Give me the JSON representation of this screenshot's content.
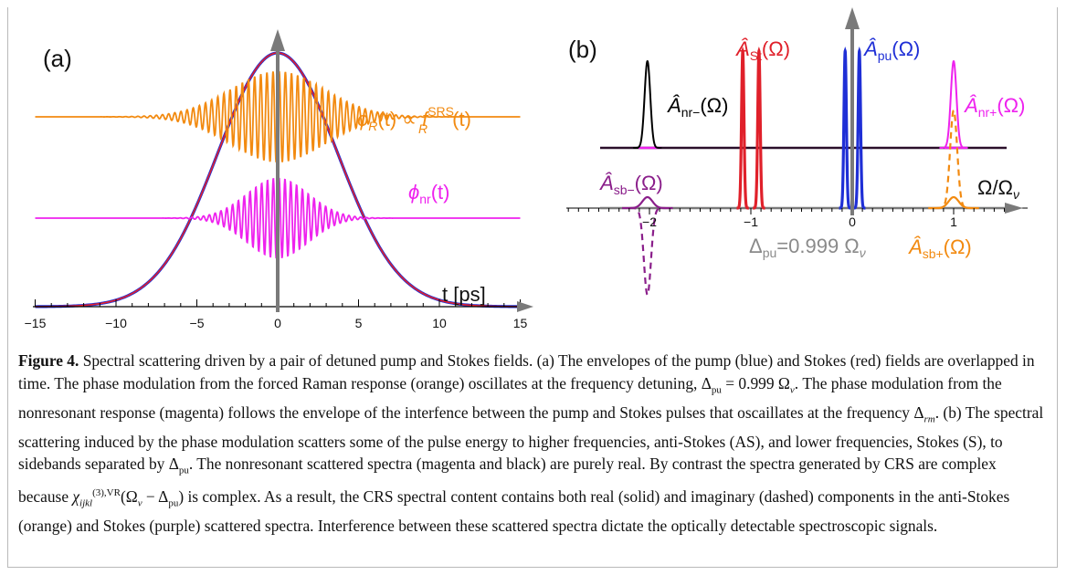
{
  "panel_a": {
    "label": "(a)",
    "phi_R_label": {
      "phi": "ϕ",
      "R": "R",
      "middle": "(t) ∝ ",
      "f": "f",
      "sup": "SRS",
      "sub": "R",
      "end": "(t)"
    },
    "phi_nr_label": {
      "phi": "ϕ",
      "sub": "nr",
      "end": "(t)"
    },
    "axis_label": "t [ps]",
    "ticks": [
      "−15",
      "−10",
      "−5",
      "0",
      "5",
      "10",
      "15"
    ],
    "colors": {
      "pump": "#1f2fd6",
      "stokes": "#e0202a",
      "raman": "#f28a10",
      "nonresonant": "#ee22ee",
      "axis": "#7a7a7a"
    }
  },
  "panel_b": {
    "label": "(b)",
    "label_St": {
      "main": "Â",
      "sub": "St",
      "end": "(Ω)"
    },
    "label_pu": {
      "main": "Â",
      "sub": "pu",
      "end": "(Ω)"
    },
    "label_nr_minus": {
      "main": "Â",
      "sub": "nr−",
      "end": "(Ω)"
    },
    "label_nr_plus": {
      "main": "Â",
      "sub": "nr+",
      "end": "(Ω)"
    },
    "label_sb_minus": {
      "main": "Â",
      "sub": "sb−",
      "end": "(Ω)"
    },
    "label_sb_plus": {
      "main": "Â",
      "sub": "sb+",
      "end": "(Ω)"
    },
    "axis_label": {
      "main": "Ω/Ω",
      "sub": "ν"
    },
    "ticks": [
      "−2",
      "−1",
      "0",
      "1"
    ],
    "detuning": {
      "main": "Δ",
      "sub": "pu",
      "mid": "=0.999 Ω",
      "sub2": "ν"
    },
    "colors": {
      "stokes": "#e0202a",
      "pump": "#1f2fd6",
      "nr_minus": "#000000",
      "nr_plus": "#ee22ee",
      "sb_minus": "#8a1e8a",
      "sb_plus": "#f28a10",
      "axis": "#7a7a7a",
      "baseline": "#2a0f2a"
    }
  },
  "caption": {
    "figure_label": "Figure 4.",
    "parts": [
      " Spectral scattering driven by a pair of detuned pump and Stokes fields. (a) The envelopes of the pump (blue) and Stokes (red) fields are overlapped in time. The phase modulation from the forced Raman response (orange) oscillates at the frequency detuning, ",
      "Δ",
      "pu",
      " = 0.999 Ω",
      "ν",
      ". The phase modulation from the nonresonant response (magenta) follows the envelope of the interfence between the pump and Stokes pulses that oscaillates at the frequency ",
      "Δ",
      "rm",
      ". (b) The spectral scattering induced by the phase modulation scatters some of the pulse energy to higher frequencies, anti-Stokes (AS), and lower frequencies, Stokes (S), to sidebands separated by ",
      "Δ",
      "pu",
      ". The nonresonant scattered spectra (magenta and black) are purely real. By contrast the spectra generated by CRS are complex because ",
      "χ",
      "ijkl",
      "(3),VR",
      "(Ω",
      "ν",
      " − Δ",
      "pu",
      ") is complex. As a result, the CRS spectral content contains both real (solid) and imaginary (dashed) components in the anti-Stokes (orange) and Stokes (purple) scattered spectra. Interference between these scattered spectra dictate the optically detectable spectroscopic signals."
    ]
  }
}
